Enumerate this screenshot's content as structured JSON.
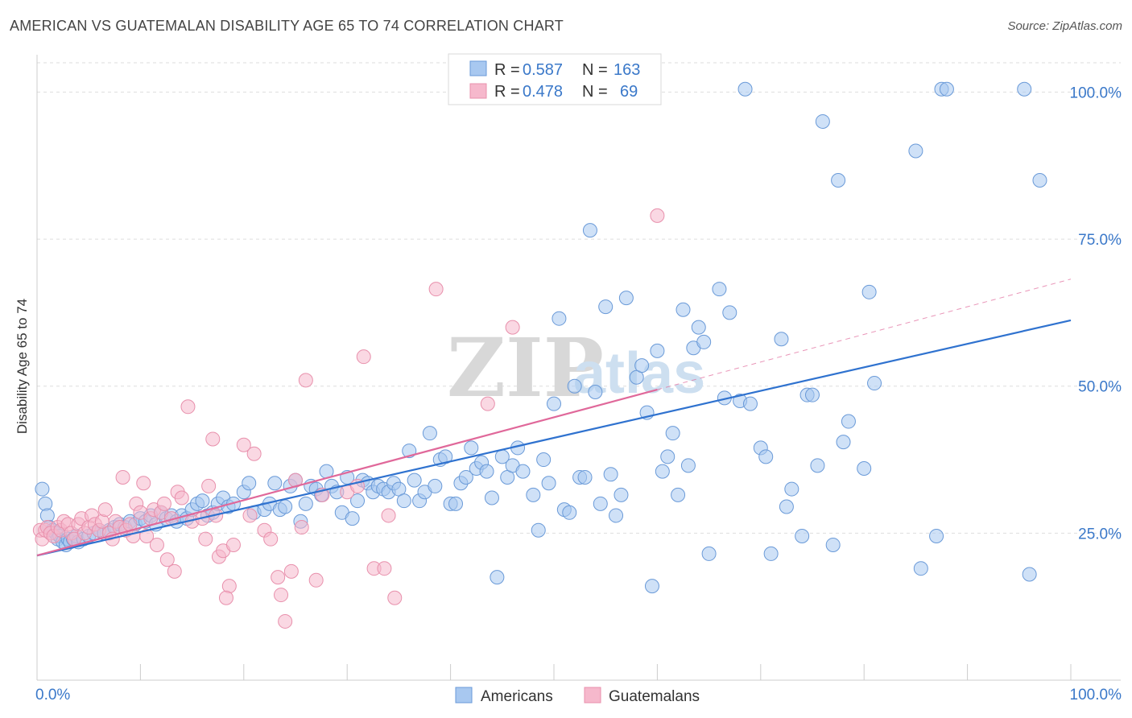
{
  "title": "AMERICAN VS GUATEMALAN DISABILITY AGE 65 TO 74 CORRELATION CHART",
  "source": "Source: ZipAtlas.com",
  "watermark": {
    "zip": "ZIP",
    "atlas": "atlas"
  },
  "legend_box": {
    "rows": [
      {
        "r_label": "R =",
        "r_value": "0.587",
        "n_label": "N =",
        "n_value": "163"
      },
      {
        "r_label": "R =",
        "r_value": "0.478",
        "n_label": "N =",
        "n_value": "69"
      }
    ]
  },
  "bottom_legend": [
    "Americans",
    "Guatemalans"
  ],
  "colors": {
    "americans_fill": "#a8c8f0",
    "americans_stroke": "#6a9ad8",
    "americans_line": "#2f72cf",
    "guatemalans_fill": "#f6b8cc",
    "guatemalans_stroke": "#e890ac",
    "guatemalans_line": "#e0689a",
    "tick_label": "#3a78c9",
    "grid": "#dddddd"
  },
  "chart_data": {
    "type": "scatter",
    "title": "AMERICAN VS GUATEMALAN DISABILITY AGE 65 TO 74 CORRELATION CHART",
    "xlabel": "",
    "ylabel": "Disability Age 65 to 74",
    "xlim": [
      0,
      100
    ],
    "ylim": [
      0,
      102
    ],
    "x_tick_labels": [
      "0.0%",
      "100.0%"
    ],
    "y_ticks": [
      25,
      50,
      75,
      100
    ],
    "y_tick_labels": [
      "25.0%",
      "50.0%",
      "75.0%",
      "100.0%"
    ],
    "grid": "horizontal dashed",
    "legend_position": "top-center",
    "series": [
      {
        "name": "Americans",
        "r": 0.587,
        "n": 163,
        "trend": {
          "x": [
            0,
            100
          ],
          "y": [
            21.2,
            61.2
          ]
        },
        "points": [
          [
            0.5,
            32.5
          ],
          [
            0.8,
            30
          ],
          [
            1,
            28
          ],
          [
            1.2,
            26
          ],
          [
            1.5,
            25.5
          ],
          [
            1.8,
            25
          ],
          [
            2,
            24
          ],
          [
            2.2,
            24.5
          ],
          [
            2.5,
            23.5
          ],
          [
            2.8,
            23
          ],
          [
            3,
            24
          ],
          [
            3.2,
            23.5
          ],
          [
            3.5,
            24
          ],
          [
            3.8,
            24.5
          ],
          [
            4,
            23.5
          ],
          [
            4.5,
            24
          ],
          [
            5,
            24.5
          ],
          [
            5.5,
            25
          ],
          [
            6,
            25.5
          ],
          [
            6.5,
            25
          ],
          [
            7,
            25.5
          ],
          [
            7.5,
            26
          ],
          [
            8,
            26.5
          ],
          [
            8.5,
            26
          ],
          [
            9,
            27
          ],
          [
            9.5,
            26.5
          ],
          [
            10,
            27.5
          ],
          [
            10.5,
            27
          ],
          [
            11,
            28
          ],
          [
            11.5,
            26.5
          ],
          [
            12,
            28.5
          ],
          [
            12.5,
            27.5
          ],
          [
            13,
            28
          ],
          [
            13.5,
            27
          ],
          [
            14,
            28
          ],
          [
            14.5,
            27.5
          ],
          [
            15,
            29
          ],
          [
            15.5,
            30
          ],
          [
            16,
            30.5
          ],
          [
            16.5,
            28
          ],
          [
            17,
            28.5
          ],
          [
            17.5,
            30
          ],
          [
            18,
            31
          ],
          [
            18.5,
            29.5
          ],
          [
            19,
            30
          ],
          [
            20,
            32
          ],
          [
            20.5,
            33.5
          ],
          [
            21,
            28.5
          ],
          [
            22,
            29
          ],
          [
            22.5,
            30
          ],
          [
            23,
            33.5
          ],
          [
            23.5,
            29
          ],
          [
            24,
            29.5
          ],
          [
            24.5,
            33
          ],
          [
            25,
            34
          ],
          [
            25.5,
            27
          ],
          [
            26,
            30
          ],
          [
            26.5,
            33
          ],
          [
            27,
            32.5
          ],
          [
            27.5,
            31.5
          ],
          [
            28,
            35.5
          ],
          [
            28.5,
            33
          ],
          [
            29,
            32
          ],
          [
            29.5,
            28.5
          ],
          [
            30,
            34.5
          ],
          [
            30.5,
            27.5
          ],
          [
            31,
            30.5
          ],
          [
            31.5,
            34
          ],
          [
            32,
            33.5
          ],
          [
            32.5,
            32
          ],
          [
            33,
            33
          ],
          [
            33.5,
            32.5
          ],
          [
            34,
            32
          ],
          [
            34.5,
            33.5
          ],
          [
            35,
            32.5
          ],
          [
            35.5,
            30.5
          ],
          [
            36,
            39
          ],
          [
            36.5,
            34
          ],
          [
            37,
            30.5
          ],
          [
            37.5,
            32
          ],
          [
            38,
            42
          ],
          [
            38.5,
            33
          ],
          [
            39,
            37.5
          ],
          [
            39.5,
            38
          ],
          [
            40,
            30
          ],
          [
            40.5,
            30
          ],
          [
            41,
            33.5
          ],
          [
            41.5,
            34.5
          ],
          [
            42,
            39.5
          ],
          [
            42.5,
            36
          ],
          [
            43,
            37
          ],
          [
            43.5,
            35.5
          ],
          [
            44,
            31
          ],
          [
            44.5,
            17.5
          ],
          [
            45,
            38
          ],
          [
            45.5,
            34.5
          ],
          [
            46,
            36.5
          ],
          [
            46.5,
            39.5
          ],
          [
            47,
            35.5
          ],
          [
            48,
            31.5
          ],
          [
            48.5,
            25.5
          ],
          [
            49,
            37.5
          ],
          [
            49.5,
            33.5
          ],
          [
            50,
            47
          ],
          [
            50.5,
            61.5
          ],
          [
            51,
            29
          ],
          [
            51.5,
            28.5
          ],
          [
            52,
            50
          ],
          [
            52.5,
            34.5
          ],
          [
            53,
            34.5
          ],
          [
            53.5,
            76.5
          ],
          [
            54,
            49
          ],
          [
            54.5,
            30
          ],
          [
            55,
            63.5
          ],
          [
            55.5,
            35
          ],
          [
            56,
            28
          ],
          [
            56.5,
            31.5
          ],
          [
            57,
            65
          ],
          [
            58,
            51.5
          ],
          [
            58.5,
            53.5
          ],
          [
            59,
            45.5
          ],
          [
            59.5,
            16
          ],
          [
            60,
            56
          ],
          [
            60.5,
            35.5
          ],
          [
            61,
            38
          ],
          [
            61.5,
            42
          ],
          [
            62,
            31.5
          ],
          [
            62.5,
            63
          ],
          [
            63,
            36.5
          ],
          [
            63.5,
            56.5
          ],
          [
            64,
            60
          ],
          [
            64.5,
            57.5
          ],
          [
            65,
            21.5
          ],
          [
            66,
            66.5
          ],
          [
            66.5,
            48
          ],
          [
            67,
            62.5
          ],
          [
            68,
            47.5
          ],
          [
            68.5,
            100.5
          ],
          [
            69,
            47
          ],
          [
            70,
            39.5
          ],
          [
            70.5,
            38
          ],
          [
            71,
            21.5
          ],
          [
            72,
            58
          ],
          [
            72.5,
            29.5
          ],
          [
            73,
            32.5
          ],
          [
            74,
            24.5
          ],
          [
            74.5,
            48.5
          ],
          [
            75,
            48.5
          ],
          [
            75.5,
            36.5
          ],
          [
            76,
            95
          ],
          [
            77,
            23
          ],
          [
            77.5,
            85
          ],
          [
            78,
            40.5
          ],
          [
            78.5,
            44
          ],
          [
            80,
            36
          ],
          [
            80.5,
            66
          ],
          [
            81,
            50.5
          ],
          [
            85,
            90
          ],
          [
            85.5,
            19
          ],
          [
            87.5,
            100.5
          ],
          [
            88,
            100.5
          ],
          [
            87,
            24.5
          ],
          [
            95.5,
            100.5
          ],
          [
            96,
            18
          ],
          [
            97,
            85
          ]
        ]
      },
      {
        "name": "Guatemalans",
        "r": 0.478,
        "n": 69,
        "trend": {
          "x": [
            0,
            60
          ],
          "y": [
            21.2,
            49.4
          ]
        },
        "trend_extension": {
          "x": [
            60,
            100
          ],
          "y": [
            49.4,
            68.2
          ]
        },
        "points": [
          [
            0.3,
            25.5
          ],
          [
            0.5,
            24
          ],
          [
            0.8,
            25.5
          ],
          [
            1,
            26
          ],
          [
            1.3,
            25
          ],
          [
            1.6,
            24.5
          ],
          [
            2,
            26
          ],
          [
            2.3,
            25.5
          ],
          [
            2.6,
            27
          ],
          [
            3,
            26.5
          ],
          [
            3.3,
            25
          ],
          [
            3.6,
            24
          ],
          [
            4,
            26.5
          ],
          [
            4.3,
            27.5
          ],
          [
            4.6,
            25
          ],
          [
            5,
            26
          ],
          [
            5.3,
            28
          ],
          [
            5.6,
            26.5
          ],
          [
            6,
            25.5
          ],
          [
            6.3,
            27
          ],
          [
            6.6,
            29
          ],
          [
            7,
            25
          ],
          [
            7.3,
            24
          ],
          [
            7.6,
            27
          ],
          [
            8,
            26
          ],
          [
            8.3,
            34.5
          ],
          [
            8.6,
            25.5
          ],
          [
            9,
            26.5
          ],
          [
            9.3,
            24.5
          ],
          [
            9.6,
            30
          ],
          [
            10,
            28.5
          ],
          [
            10.3,
            33.5
          ],
          [
            10.6,
            24.5
          ],
          [
            11,
            27.5
          ],
          [
            11.3,
            29
          ],
          [
            11.6,
            23
          ],
          [
            12,
            28.5
          ],
          [
            12.3,
            30
          ],
          [
            12.6,
            20.5
          ],
          [
            13,
            27.5
          ],
          [
            13.3,
            18.5
          ],
          [
            13.6,
            32
          ],
          [
            14,
            31
          ],
          [
            14.6,
            46.5
          ],
          [
            15,
            27
          ],
          [
            16,
            27.5
          ],
          [
            16.3,
            24
          ],
          [
            16.6,
            33
          ],
          [
            17,
            41
          ],
          [
            17.3,
            28
          ],
          [
            17.6,
            21
          ],
          [
            18,
            22
          ],
          [
            18.6,
            16
          ],
          [
            18.3,
            14
          ],
          [
            19,
            23
          ],
          [
            20,
            40
          ],
          [
            20.6,
            28
          ],
          [
            21,
            38.5
          ],
          [
            22,
            25.5
          ],
          [
            22.6,
            24
          ],
          [
            23.3,
            17.5
          ],
          [
            23.6,
            14.5
          ],
          [
            24,
            10
          ],
          [
            24.6,
            18.5
          ],
          [
            25,
            34
          ],
          [
            25.6,
            26
          ],
          [
            26,
            51
          ],
          [
            27,
            17
          ],
          [
            27.6,
            31.5
          ],
          [
            30,
            32
          ],
          [
            31,
            33
          ],
          [
            31.6,
            55
          ],
          [
            32.6,
            19
          ],
          [
            33.6,
            19
          ],
          [
            34,
            28
          ],
          [
            34.6,
            14
          ],
          [
            38.6,
            66.5
          ],
          [
            43.6,
            47
          ],
          [
            46,
            60
          ],
          [
            60,
            79
          ]
        ]
      }
    ]
  }
}
